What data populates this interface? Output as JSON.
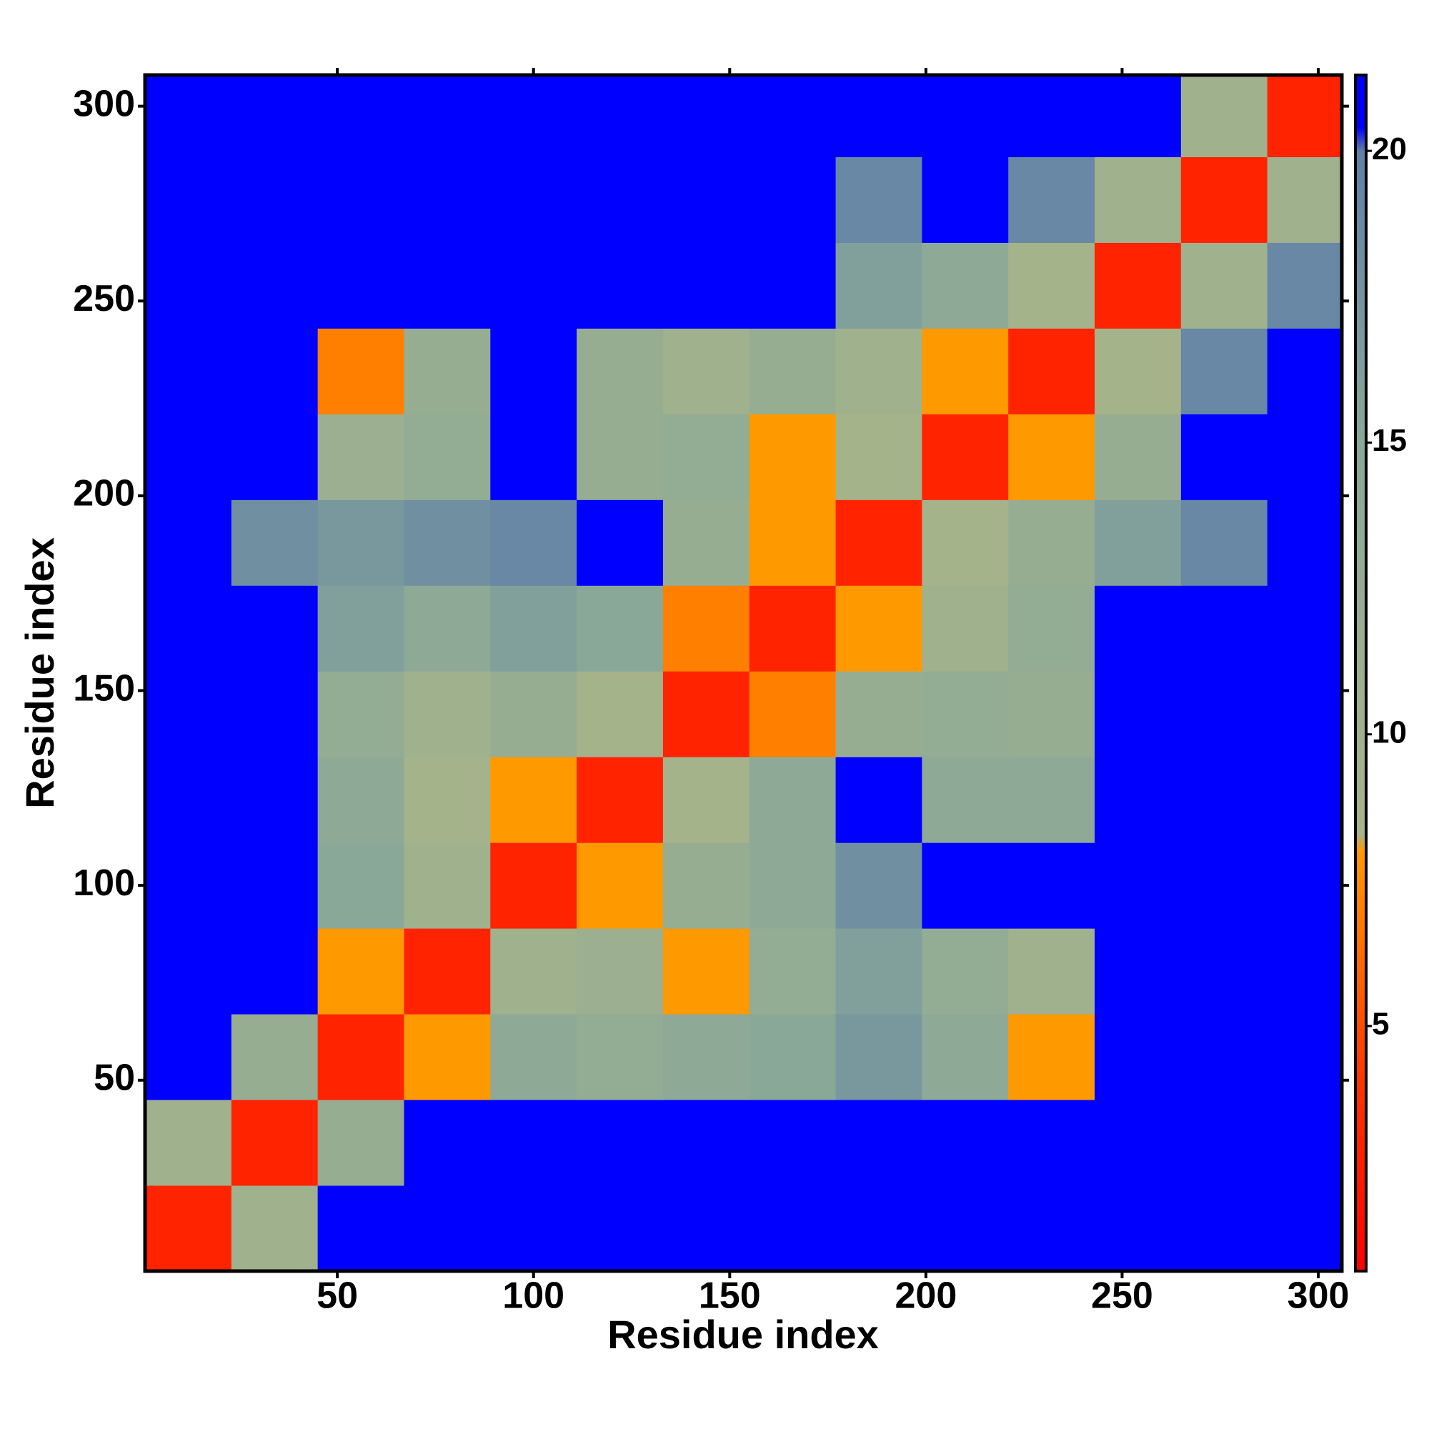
{
  "chart_data": {
    "type": "heatmap",
    "xlabel": "Residue index",
    "ylabel": "Residue index",
    "xlim": [
      1,
      306
    ],
    "ylim": [
      1,
      308
    ],
    "xticks": [
      50,
      100,
      150,
      200,
      250,
      300
    ],
    "yticks": [
      50,
      100,
      150,
      200,
      250,
      300
    ],
    "bins": [
      1,
      23,
      45,
      67,
      89,
      111,
      133,
      155,
      177,
      199,
      221,
      243,
      265,
      287,
      308
    ],
    "z": [
      [
        3,
        10,
        21,
        21,
        21,
        21,
        21,
        21,
        21,
        21,
        21,
        21,
        21,
        21
      ],
      [
        10,
        3,
        12,
        21,
        21,
        21,
        21,
        21,
        21,
        21,
        21,
        21,
        21,
        21
      ],
      [
        21,
        12,
        3,
        8,
        14,
        13,
        14,
        15,
        17,
        14,
        8,
        21,
        21,
        21
      ],
      [
        21,
        21,
        8,
        3,
        10,
        11,
        8,
        13,
        16,
        13,
        10,
        21,
        21,
        21
      ],
      [
        21,
        21,
        15,
        10,
        3,
        8,
        12,
        14,
        18,
        21,
        21,
        21,
        21,
        21
      ],
      [
        21,
        21,
        14,
        9,
        8,
        3,
        9,
        14,
        21,
        14,
        14,
        21,
        21,
        21
      ],
      [
        21,
        21,
        13,
        10,
        12,
        9,
        3,
        7,
        12,
        13,
        12,
        21,
        21,
        21
      ],
      [
        21,
        21,
        16,
        14,
        16,
        15,
        7,
        3,
        8,
        10,
        13,
        21,
        21,
        21
      ],
      [
        21,
        18,
        17,
        18,
        19,
        21,
        12,
        8,
        3,
        9,
        12,
        16,
        19,
        21
      ],
      [
        21,
        21,
        11,
        13,
        21,
        12,
        13,
        8,
        9,
        3,
        8,
        12,
        21,
        21
      ],
      [
        21,
        21,
        7,
        12,
        21,
        12,
        10,
        12,
        10,
        8,
        3,
        9,
        19,
        21
      ],
      [
        21,
        21,
        21,
        21,
        21,
        21,
        21,
        21,
        16,
        14,
        9,
        3,
        10,
        19
      ],
      [
        21,
        21,
        21,
        21,
        21,
        21,
        21,
        21,
        19,
        21,
        19,
        10,
        3,
        10
      ],
      [
        21,
        21,
        21,
        21,
        21,
        21,
        21,
        21,
        21,
        21,
        21,
        21,
        10,
        3
      ]
    ],
    "clim": [
      0.8,
      21.3
    ],
    "cticks": [
      5,
      10,
      15,
      20
    ],
    "colorscale": [
      {
        "value": 0.8,
        "color": "#ff0000"
      },
      {
        "value": 4,
        "color": "#ff3300"
      },
      {
        "value": 8,
        "color": "#ff9900"
      },
      {
        "value": 8.3,
        "color": "#a8b48a"
      },
      {
        "value": 15,
        "color": "#8aa898"
      },
      {
        "value": 20,
        "color": "#5f80a8"
      },
      {
        "value": 20.4,
        "color": "#0000ff"
      },
      {
        "value": 21.3,
        "color": "#0000ff"
      }
    ]
  }
}
